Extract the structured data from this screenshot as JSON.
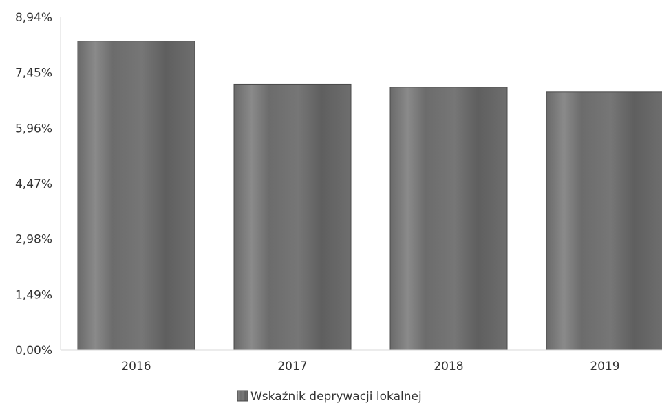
{
  "chart_data": {
    "type": "bar",
    "categories": [
      "2016",
      "2017",
      "2018",
      "2019"
    ],
    "series": [
      {
        "name": "Wskaźnik deprywacji lokalnej",
        "values": [
          8.3,
          7.14,
          7.06,
          6.93
        ]
      }
    ],
    "ylim": [
      0,
      8.94
    ],
    "y_ticks": [
      "0,00%",
      "1,49%",
      "2,98%",
      "4,47%",
      "5,96%",
      "7,45%",
      "8,94%"
    ],
    "y_tick_values": [
      0,
      1.49,
      2.98,
      4.47,
      5.96,
      7.45,
      8.94
    ],
    "grid": false,
    "legend_position": "bottom-center",
    "title": "",
    "xlabel": "",
    "ylabel": "",
    "colors": {
      "bar": "#6e6e6e",
      "bar_light": "#858585",
      "bar_dark": "#5c5c5c",
      "axis": "#d9d9d9",
      "text": "#333333"
    }
  }
}
